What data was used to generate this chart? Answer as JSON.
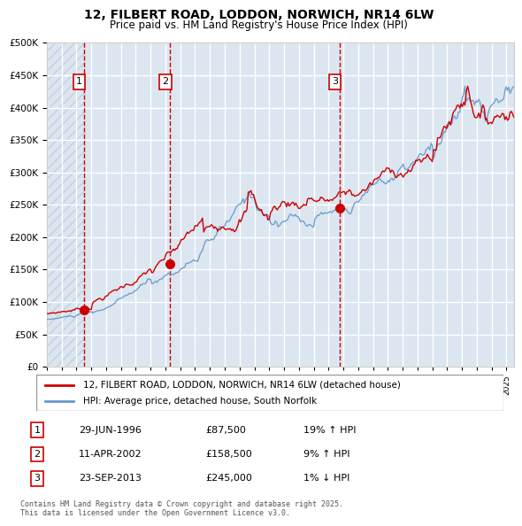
{
  "title": "12, FILBERT ROAD, LODDON, NORWICH, NR14 6LW",
  "subtitle": "Price paid vs. HM Land Registry's House Price Index (HPI)",
  "legend_line1": "12, FILBERT ROAD, LODDON, NORWICH, NR14 6LW (detached house)",
  "legend_line2": "HPI: Average price, detached house, South Norfolk",
  "sale1_date": "29-JUN-1996",
  "sale1_price": 87500,
  "sale1_hpi": "19% ↑ HPI",
  "sale1_label": "1",
  "sale1_x": 1996.49,
  "sale2_date": "11-APR-2002",
  "sale2_price": 158500,
  "sale2_hpi": "9% ↑ HPI",
  "sale2_label": "2",
  "sale2_x": 2002.28,
  "sale3_date": "23-SEP-2013",
  "sale3_price": 245000,
  "sale3_hpi": "1% ↓ HPI",
  "sale3_label": "3",
  "sale3_x": 2013.73,
  "red_line_color": "#cc0000",
  "blue_line_color": "#6699cc",
  "background_color": "#dce6f0",
  "hatch_color": "#aabbcc",
  "grid_color": "#ffffff",
  "vline_color": "#cc0000",
  "ylim": [
    0,
    500000
  ],
  "yticks": [
    0,
    50000,
    100000,
    150000,
    200000,
    250000,
    300000,
    350000,
    400000,
    450000,
    500000
  ],
  "xmin": 1994.0,
  "xmax": 2025.5,
  "footnote": "Contains HM Land Registry data © Crown copyright and database right 2025.\nThis data is licensed under the Open Government Licence v3.0."
}
